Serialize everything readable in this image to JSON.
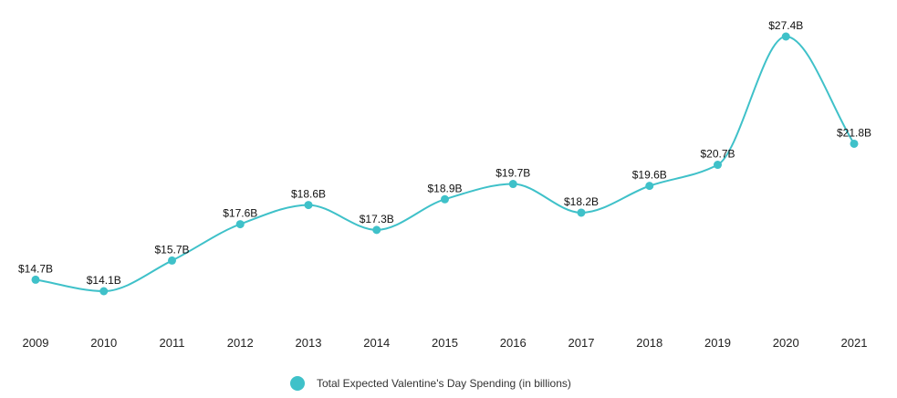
{
  "chart_data": {
    "type": "line",
    "title": "",
    "xlabel": "",
    "ylabel": "",
    "x": [
      "2009",
      "2010",
      "2011",
      "2012",
      "2013",
      "2014",
      "2015",
      "2016",
      "2017",
      "2018",
      "2019",
      "2020",
      "2021"
    ],
    "series": [
      {
        "name": "Total Expected Valentine's Day Spending (in billions)",
        "values": [
          14.7,
          14.1,
          15.7,
          17.6,
          18.6,
          17.3,
          18.9,
          19.7,
          18.2,
          19.6,
          20.7,
          27.4,
          21.8
        ],
        "labels": [
          "$14.7B",
          "$14.1B",
          "$15.7B",
          "$17.6B",
          "$18.6B",
          "$17.3B",
          "$18.9B",
          "$19.7B",
          "$18.2B",
          "$19.6B",
          "$20.7B",
          "$27.4B",
          "$21.8B"
        ],
        "color": "#3fc1c9"
      }
    ],
    "ylim": [
      12.8,
      28.0
    ],
    "grid": false,
    "y_axis_visible": false,
    "legend": "bottom-center",
    "smooth": true
  }
}
